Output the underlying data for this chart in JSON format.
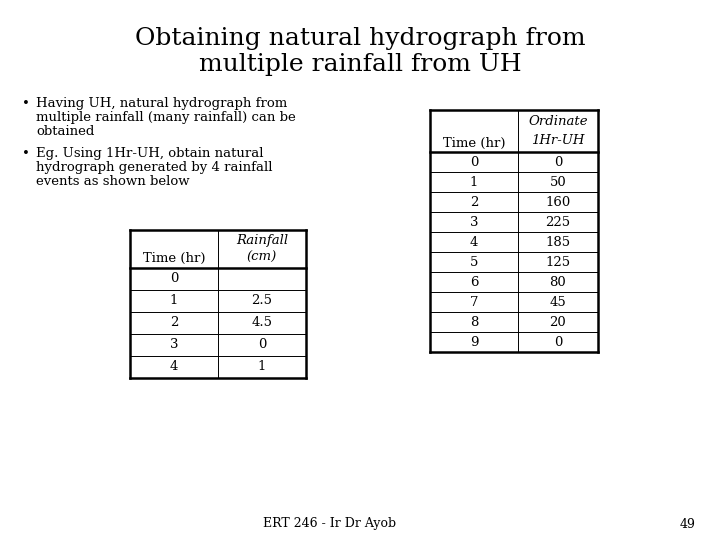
{
  "title_line1": "Obtaining natural hydrograph from",
  "title_line2": "multiple rainfall from UH",
  "title_fontsize": 18,
  "bullet1_line1": "Having UH, natural hydrograph from",
  "bullet1_line2": "multiple rainfall (many rainfall) can be",
  "bullet1_line3": "obtained",
  "bullet2_line1": "Eg. Using 1Hr-UH, obtain natural",
  "bullet2_line2": "hydrograph generated by 4 rainfall",
  "bullet2_line3": "events as shown below",
  "footer": "ERT 246 - Ir Dr Ayob",
  "page_number": "49",
  "rainfall_table": {
    "col1_header": "Time (hr)",
    "col2_header_line1": "Rainfall",
    "col2_header_line2": "(cm)",
    "rows": [
      [
        "0",
        ""
      ],
      [
        "1",
        "2.5"
      ],
      [
        "2",
        "4.5"
      ],
      [
        "3",
        "0"
      ],
      [
        "4",
        "1"
      ]
    ]
  },
  "uh_table": {
    "col1_header": "Time (hr)",
    "col2_header_line1": "Ordinate",
    "col2_header_line2": "1Hr-UH",
    "rows": [
      [
        "0",
        "0"
      ],
      [
        "1",
        "50"
      ],
      [
        "2",
        "160"
      ],
      [
        "3",
        "225"
      ],
      [
        "4",
        "185"
      ],
      [
        "5",
        "125"
      ],
      [
        "6",
        "80"
      ],
      [
        "7",
        "45"
      ],
      [
        "8",
        "20"
      ],
      [
        "9",
        "0"
      ]
    ]
  },
  "background_color": "#ffffff",
  "text_color": "#000000",
  "font_family": "DejaVu Serif"
}
